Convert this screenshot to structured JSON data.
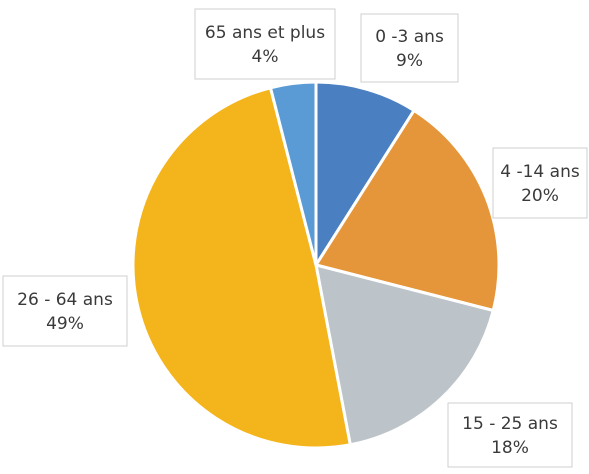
{
  "chart_data": {
    "type": "pie",
    "title": "",
    "start_angle_deg": 0,
    "direction": "clockwise",
    "slices": [
      {
        "label": "0 -3 ans",
        "value": 9,
        "value_label": "9%",
        "color": "#4a7fc1"
      },
      {
        "label": "4 -14 ans",
        "value": 20,
        "value_label": "20%",
        "color": "#e5963a"
      },
      {
        "label": "15 - 25 ans",
        "value": 18,
        "value_label": "18%",
        "color": "#bcc3c9"
      },
      {
        "label": "26 - 64 ans",
        "value": 49,
        "value_label": "49%",
        "color": "#f4b41c"
      },
      {
        "label": "65 ans et plus",
        "value": 4,
        "value_label": "4%",
        "color": "#5b9bd5"
      }
    ]
  }
}
